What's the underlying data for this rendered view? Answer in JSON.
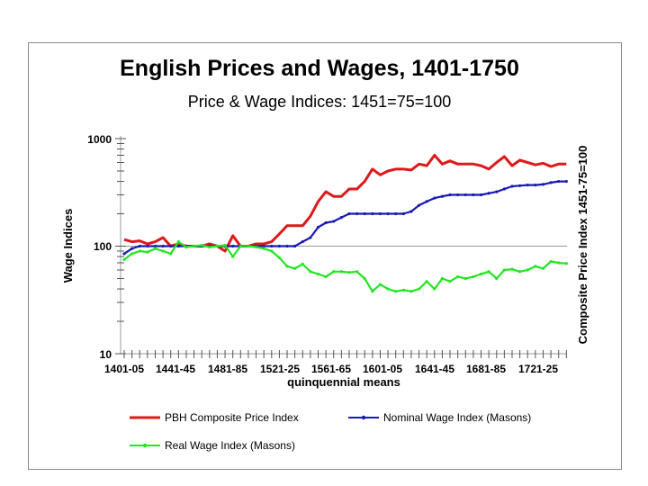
{
  "chart_data": {
    "type": "line",
    "title": "English Prices and Wages, 1401-1750",
    "subtitle": "Price & Wage Indices: 1451=75=100",
    "xlabel": "quinquennial means",
    "ylabel": "Wage Indices",
    "ylabel_right": "Composite Price Index 1451-75=100",
    "yscale": "log",
    "ylim": [
      10,
      1000
    ],
    "y_ticks": [
      "1000",
      "100",
      "10"
    ],
    "x_tick_labels": [
      "1401-05",
      "1441-45",
      "1481-85",
      "1521-25",
      "1561-65",
      "1601-05",
      "1641-45",
      "1681-85",
      "1721-25"
    ],
    "x_start": 1401,
    "x_step": 5,
    "series": [
      {
        "name": "PBH Composite Price Index",
        "color": "#dd1a1a",
        "marker": "none",
        "values": [
          115,
          110,
          112,
          105,
          110,
          120,
          100,
          105,
          100,
          100,
          100,
          105,
          100,
          90,
          125,
          100,
          100,
          105,
          105,
          110,
          130,
          155,
          155,
          155,
          190,
          260,
          320,
          290,
          290,
          340,
          340,
          400,
          520,
          460,
          500,
          520,
          520,
          510,
          580,
          560,
          700,
          580,
          620,
          580,
          580,
          580,
          560,
          520,
          600,
          680,
          560,
          630,
          600,
          570,
          590,
          550,
          580,
          580
        ]
      },
      {
        "name": "Nominal Wage Index (Masons)",
        "color": "#1a1ab4",
        "marker": "dot",
        "values": [
          85,
          95,
          100,
          100,
          100,
          100,
          100,
          100,
          100,
          100,
          100,
          100,
          100,
          100,
          100,
          100,
          100,
          100,
          100,
          100,
          100,
          100,
          100,
          110,
          120,
          150,
          165,
          170,
          185,
          200,
          200,
          200,
          200,
          200,
          200,
          200,
          200,
          210,
          240,
          260,
          280,
          290,
          300,
          300,
          300,
          300,
          300,
          310,
          320,
          340,
          360,
          365,
          370,
          370,
          375,
          390,
          400,
          400
        ]
      },
      {
        "name": "Real Wage Index (Masons)",
        "color": "#22e622",
        "marker": "dot",
        "values": [
          75,
          85,
          90,
          88,
          95,
          90,
          85,
          110,
          98,
          100,
          102,
          98,
          100,
          102,
          80,
          100,
          100,
          98,
          95,
          90,
          78,
          65,
          62,
          68,
          58,
          55,
          52,
          58,
          58,
          57,
          58,
          50,
          38,
          44,
          40,
          38,
          39,
          38,
          40,
          47,
          40,
          50,
          47,
          52,
          50,
          52,
          55,
          58,
          50,
          60,
          61,
          58,
          60,
          65,
          62,
          72,
          70,
          69
        ]
      }
    ],
    "legend_location": "bottom"
  }
}
